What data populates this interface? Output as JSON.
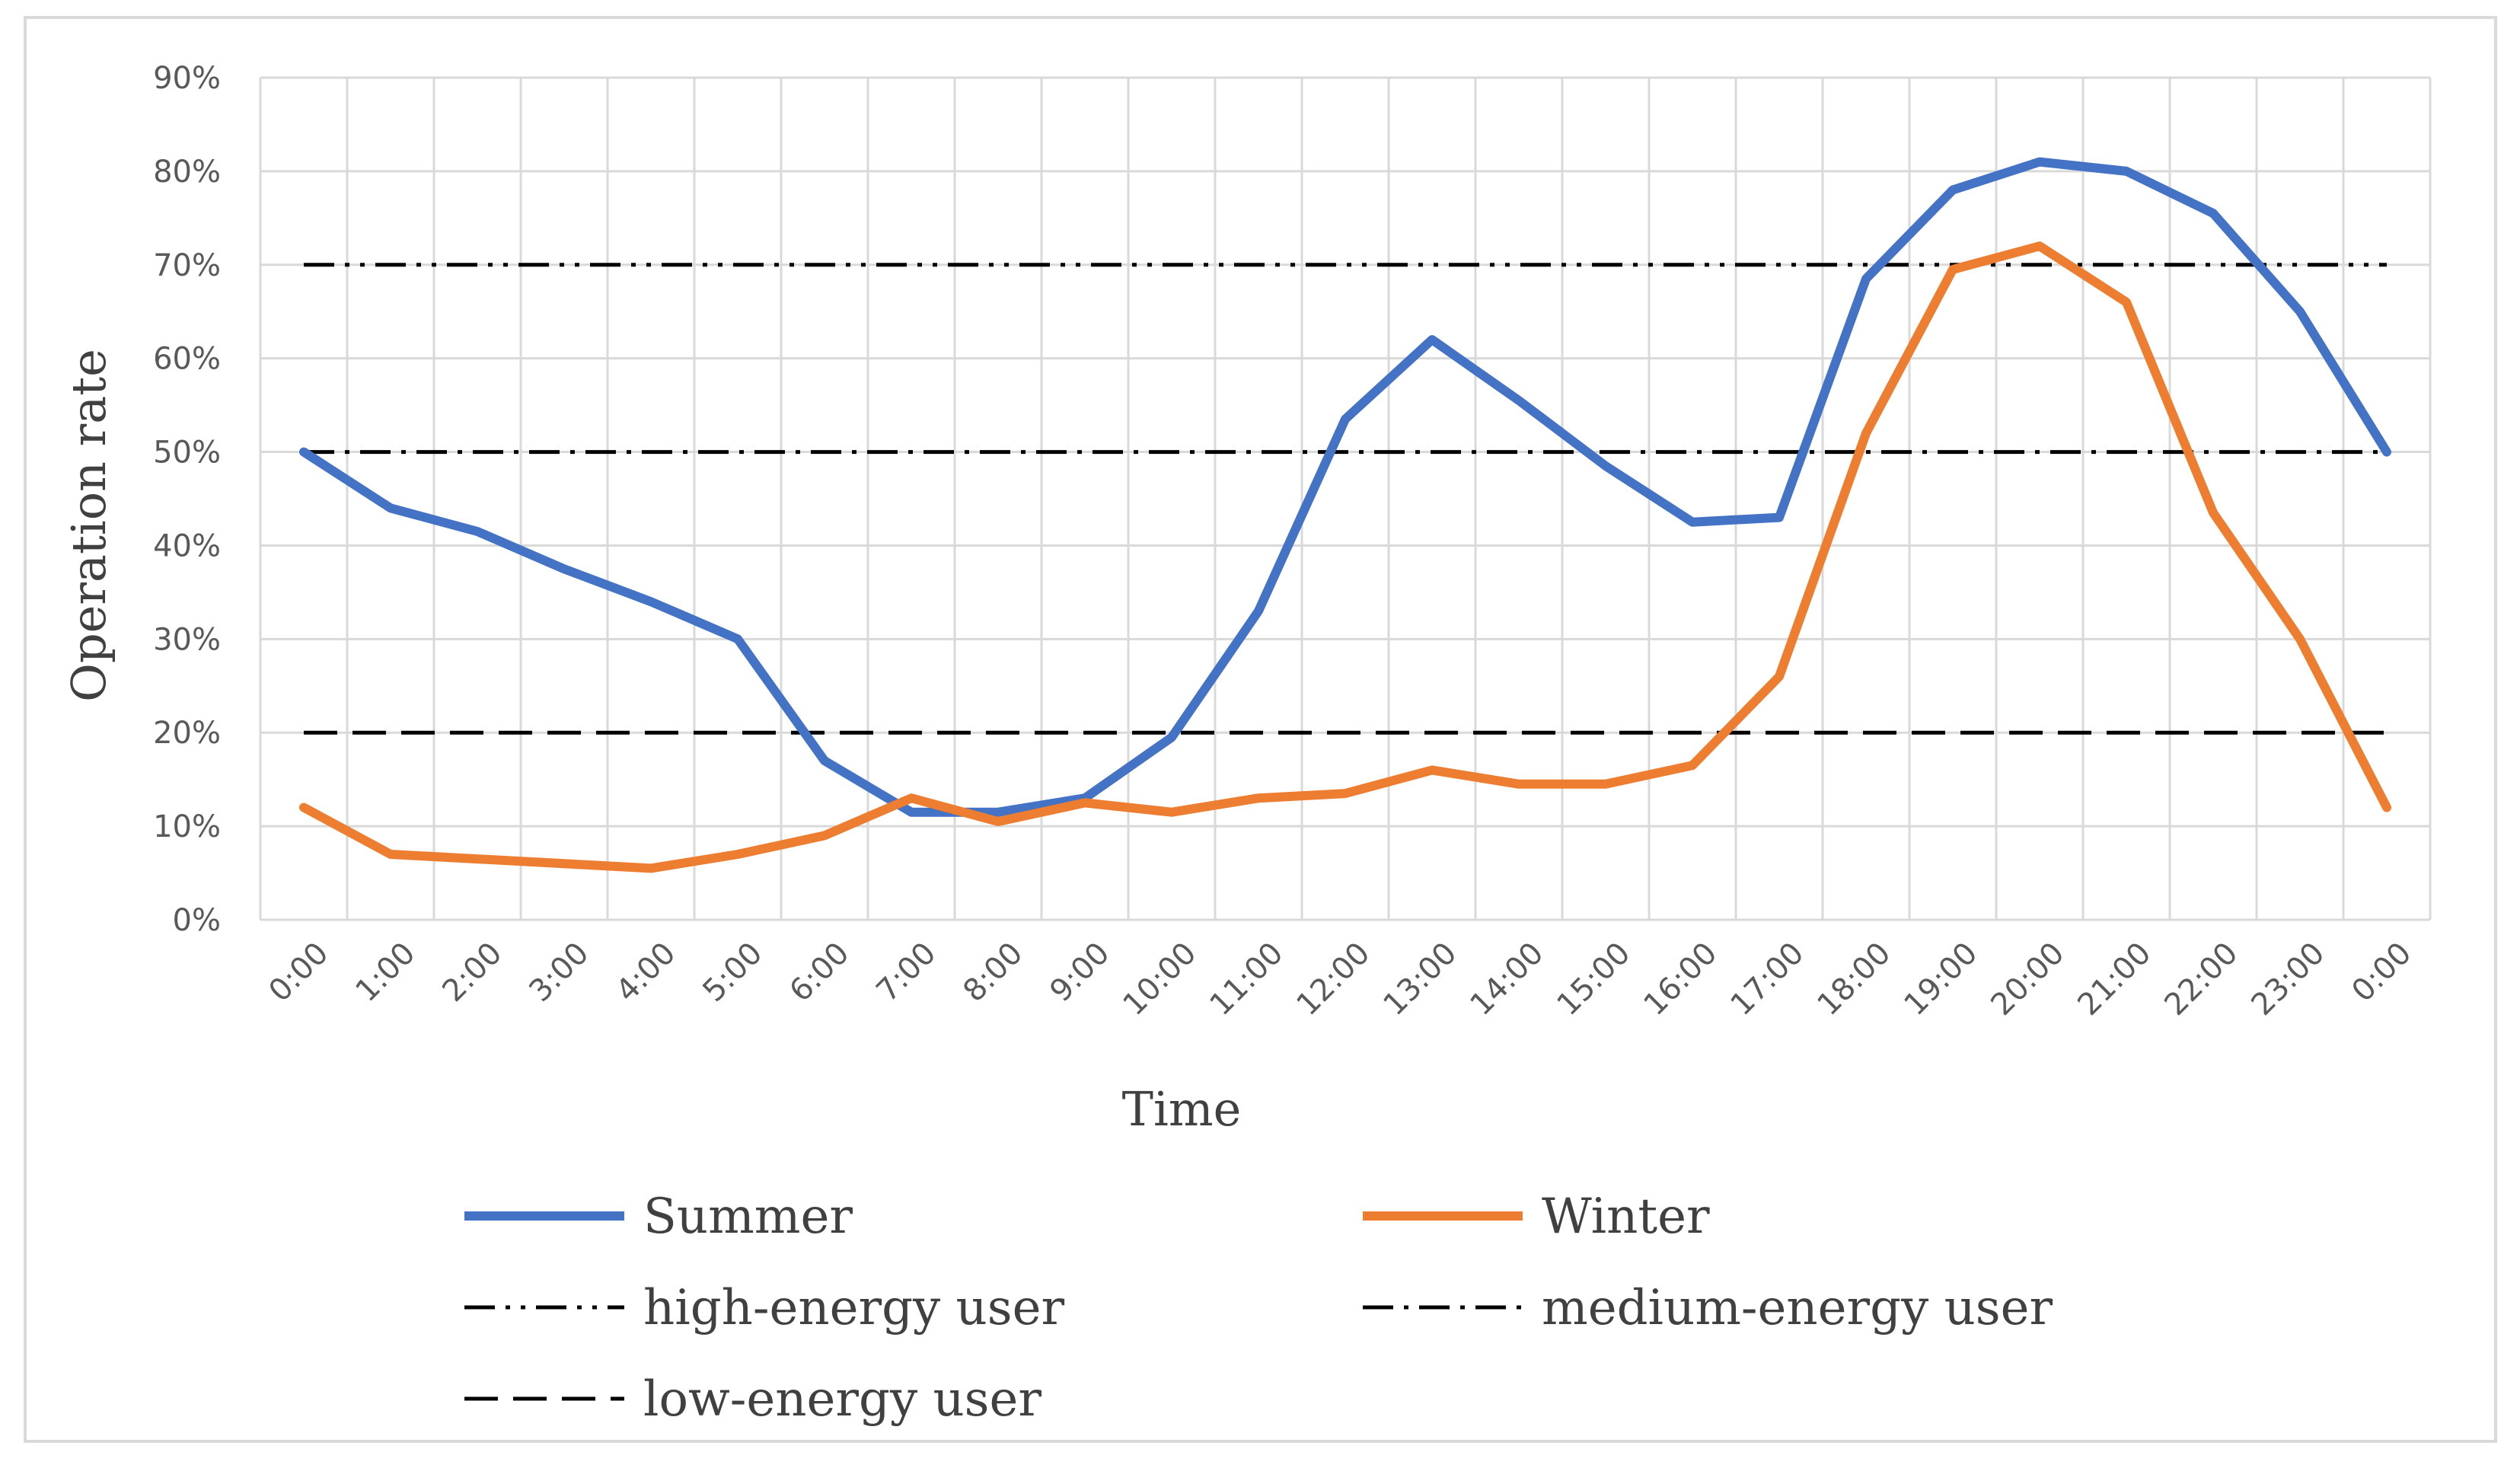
{
  "chart_data": {
    "type": "line",
    "title": "",
    "xlabel": "Time",
    "ylabel": "Operation rate",
    "ylim": [
      0,
      90
    ],
    "y_ticks": [
      "0%",
      "10%",
      "20%",
      "30%",
      "40%",
      "50%",
      "60%",
      "70%",
      "80%",
      "90%"
    ],
    "y_tick_values": [
      0,
      10,
      20,
      30,
      40,
      50,
      60,
      70,
      80,
      90
    ],
    "categories": [
      "0:00",
      "1:00",
      "2:00",
      "3:00",
      "4:00",
      "5:00",
      "6:00",
      "7:00",
      "8:00",
      "9:00",
      "10:00",
      "11:00",
      "12:00",
      "13:00",
      "14:00",
      "15:00",
      "16:00",
      "17:00",
      "18:00",
      "19:00",
      "20:00",
      "21:00",
      "22:00",
      "23:00",
      "0:00"
    ],
    "grid": true,
    "legend_position": "bottom",
    "series": [
      {
        "name": "Summer",
        "style": "solid",
        "color": "#4472C4",
        "values": [
          50,
          44,
          41.5,
          37.5,
          34,
          30,
          17,
          11.5,
          11.5,
          13,
          19.5,
          33,
          53.5,
          62,
          55.5,
          48.5,
          42.5,
          43,
          68.5,
          78,
          81,
          80,
          75.5,
          65,
          50
        ]
      },
      {
        "name": "Winter",
        "style": "solid",
        "color": "#ED7D31",
        "values": [
          12,
          7,
          6.5,
          6,
          5.5,
          7,
          9,
          13,
          10.5,
          12.5,
          11.5,
          13,
          13.5,
          16,
          14.5,
          14.5,
          16.5,
          26,
          52,
          69.5,
          72,
          66,
          43.5,
          30,
          12
        ]
      },
      {
        "name": "high-energy user",
        "style": "dash-dot-dot",
        "color": "#000000",
        "values": [
          70,
          70,
          70,
          70,
          70,
          70,
          70,
          70,
          70,
          70,
          70,
          70,
          70,
          70,
          70,
          70,
          70,
          70,
          70,
          70,
          70,
          70,
          70,
          70,
          70
        ]
      },
      {
        "name": "medium-energy user",
        "style": "dash-dot",
        "color": "#000000",
        "values": [
          50,
          50,
          50,
          50,
          50,
          50,
          50,
          50,
          50,
          50,
          50,
          50,
          50,
          50,
          50,
          50,
          50,
          50,
          50,
          50,
          50,
          50,
          50,
          50,
          50
        ]
      },
      {
        "name": "low-energy user",
        "style": "long-dash",
        "color": "#000000",
        "values": [
          20,
          20,
          20,
          20,
          20,
          20,
          20,
          20,
          20,
          20,
          20,
          20,
          20,
          20,
          20,
          20,
          20,
          20,
          20,
          20,
          20,
          20,
          20,
          20,
          20
        ]
      }
    ]
  }
}
